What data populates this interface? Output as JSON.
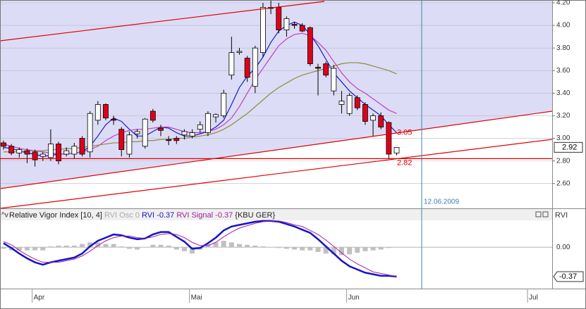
{
  "chart_data": [
    {
      "type": "candlestick",
      "symbol": "{KBU GER}",
      "up_color": "#ffffff",
      "down_color": "#e0001a",
      "open": [
        2.96,
        2.93,
        2.87,
        2.89,
        2.88,
        2.84,
        2.83,
        2.95,
        2.86,
        2.86,
        3.0,
        2.88,
        3.16,
        3.3,
        3.17,
        3.08,
        2.86,
        3.04,
        2.93,
        3.24,
        3.09,
        2.99,
        3.0,
        3.03,
        3.02,
        3.08,
        3.05,
        3.19,
        3.2,
        3.56,
        3.76,
        3.71,
        3.46,
        3.76,
        4.15,
        4.16,
        3.96,
        4.01,
        4.0,
        3.98,
        3.63,
        3.66,
        3.42,
        3.3,
        3.22,
        3.36,
        3.3,
        3.16,
        3.2,
        3.14,
        2.87,
        null,
        null,
        null,
        null,
        null,
        null,
        null,
        null,
        null,
        null,
        null,
        null,
        null,
        null,
        null,
        null,
        null,
        null,
        null
      ],
      "high": [
        2.98,
        2.95,
        2.92,
        2.91,
        2.9,
        2.88,
        3.08,
        2.97,
        2.92,
        2.96,
        3.02,
        3.24,
        3.33,
        3.31,
        3.2,
        3.1,
        3.06,
        3.08,
        3.18,
        3.26,
        3.12,
        3.02,
        3.02,
        3.08,
        3.08,
        3.15,
        3.24,
        3.22,
        3.43,
        3.9,
        3.8,
        3.73,
        3.82,
        4.2,
        4.22,
        4.2,
        4.08,
        4.03,
        4.02,
        3.99,
        3.66,
        3.68,
        3.65,
        3.42,
        3.4,
        3.38,
        3.32,
        3.22,
        3.23,
        3.15,
        2.92,
        null,
        null,
        null,
        null,
        null,
        null,
        null,
        null,
        null,
        null,
        null,
        null,
        null,
        null,
        null,
        null,
        null,
        null,
        null
      ],
      "low": [
        2.9,
        2.85,
        2.83,
        2.78,
        2.75,
        2.8,
        2.8,
        2.77,
        2.84,
        2.82,
        2.84,
        2.83,
        3.12,
        3.16,
        3.12,
        2.84,
        2.83,
        3.0,
        2.91,
        3.14,
        3.02,
        2.94,
        2.95,
        2.99,
        3.0,
        3.05,
        3.02,
        3.14,
        3.18,
        3.52,
        3.74,
        3.5,
        3.4,
        3.72,
        4.1,
        3.93,
        3.9,
        3.97,
        3.94,
        3.64,
        3.38,
        3.54,
        3.38,
        3.22,
        3.2,
        3.25,
        3.12,
        3.02,
        3.08,
        2.82,
        2.85,
        null,
        null,
        null,
        null,
        null,
        null,
        null,
        null,
        null,
        null,
        null,
        null,
        null,
        null,
        null,
        null,
        null,
        null,
        null
      ],
      "close": [
        2.93,
        2.87,
        2.9,
        2.86,
        2.81,
        2.86,
        2.95,
        2.8,
        2.89,
        2.93,
        2.86,
        3.22,
        3.3,
        3.18,
        3.16,
        2.9,
        3.03,
        3.06,
        3.17,
        3.16,
        3.07,
        2.98,
        2.98,
        3.06,
        3.05,
        3.12,
        3.22,
        3.21,
        3.4,
        3.76,
        3.77,
        3.54,
        3.8,
        4.16,
        4.16,
        3.96,
        4.06,
        4.0,
        3.95,
        3.66,
        3.62,
        3.56,
        3.62,
        3.33,
        3.38,
        3.27,
        3.15,
        3.2,
        3.1,
        2.86,
        2.92,
        null,
        null,
        null,
        null,
        null,
        null,
        null,
        null,
        null,
        null,
        null,
        null,
        null,
        null,
        null,
        null,
        null,
        null,
        null
      ],
      "moving_averages": [
        {
          "color": "#1a1ac8",
          "values": [
            2.92,
            2.91,
            2.89,
            2.87,
            2.86,
            2.84,
            2.85,
            2.86,
            2.86,
            2.87,
            2.88,
            2.93,
            3.02,
            3.12,
            3.18,
            3.15,
            3.08,
            3.02,
            3.02,
            3.06,
            3.1,
            3.09,
            3.05,
            3.02,
            3.02,
            3.04,
            3.06,
            3.1,
            3.16,
            3.3,
            3.45,
            3.55,
            3.62,
            3.72,
            3.85,
            3.95,
            4.0,
            4.03,
            4.0,
            3.92,
            3.82,
            3.7,
            3.58,
            3.5,
            3.42,
            3.36,
            3.3,
            3.25,
            3.2,
            3.12,
            3.05,
            null,
            null,
            null,
            null,
            null,
            null,
            null,
            null,
            null,
            null,
            null,
            null,
            null,
            null,
            null,
            null,
            null,
            null,
            null
          ]
        },
        {
          "color": "#c040c0",
          "values": [
            2.95,
            2.93,
            2.91,
            2.9,
            2.89,
            2.88,
            2.87,
            2.86,
            2.86,
            2.87,
            2.88,
            2.9,
            2.93,
            2.98,
            3.02,
            3.05,
            3.07,
            3.08,
            3.08,
            3.09,
            3.1,
            3.1,
            3.08,
            3.06,
            3.05,
            3.05,
            3.06,
            3.08,
            3.12,
            3.18,
            3.28,
            3.4,
            3.52,
            3.62,
            3.72,
            3.82,
            3.88,
            3.92,
            3.93,
            3.91,
            3.85,
            3.78,
            3.68,
            3.58,
            3.5,
            3.44,
            3.4,
            3.35,
            3.3,
            3.25,
            3.22,
            null,
            null,
            null,
            null,
            null,
            null,
            null,
            null,
            null,
            null,
            null,
            null,
            null,
            null,
            null,
            null,
            null,
            null,
            null
          ]
        },
        {
          "color": "#8c8c3c",
          "values": [
            2.88,
            2.88,
            2.88,
            2.89,
            2.89,
            2.89,
            2.9,
            2.9,
            2.91,
            2.91,
            2.92,
            2.93,
            2.94,
            2.95,
            2.96,
            2.96,
            2.97,
            2.97,
            2.98,
            2.98,
            2.99,
            2.99,
            3.0,
            3.0,
            3.01,
            3.02,
            3.03,
            3.05,
            3.08,
            3.12,
            3.17,
            3.22,
            3.28,
            3.34,
            3.4,
            3.45,
            3.49,
            3.53,
            3.56,
            3.58,
            3.6,
            3.62,
            3.64,
            3.66,
            3.67,
            3.67,
            3.66,
            3.64,
            3.62,
            3.6,
            3.57,
            null,
            null,
            null,
            null,
            null,
            null,
            null,
            null,
            null,
            null,
            null,
            null,
            null,
            null,
            null,
            null,
            null,
            null,
            null
          ]
        }
      ],
      "ylim": [
        2.38,
        4.225
      ],
      "yticks": [
        {
          "value": 2.6,
          "label": "2.60"
        },
        {
          "value": 2.8,
          "label": "2.80"
        },
        {
          "value": 3.0,
          "label": "3.00"
        },
        {
          "value": 3.2,
          "label": "3.20"
        },
        {
          "value": 3.4,
          "label": "3.40"
        },
        {
          "value": 3.6,
          "label": "3.60"
        },
        {
          "value": 3.8,
          "label": "3.80"
        },
        {
          "value": 4.0,
          "label": "4.00"
        },
        {
          "value": 4.2,
          "label": "4.20"
        }
      ],
      "line_label": {
        "value": 3.05,
        "label": "3.05"
      },
      "horizontal_line": {
        "value": 2.82,
        "label": "2.82"
      },
      "cursor_label": "12.06.2009"
    },
    {
      "type": "line",
      "title": "Relative Vigor Index [10, 4]",
      "axis_label": "RVI",
      "categories": [
        null,
        null,
        null,
        null,
        "Apr",
        null,
        null,
        null,
        null,
        null,
        null,
        null,
        null,
        null,
        null,
        null,
        null,
        null,
        null,
        null,
        null,
        null,
        null,
        null,
        "Mai",
        null,
        null,
        null,
        null,
        null,
        null,
        null,
        null,
        null,
        null,
        null,
        null,
        null,
        null,
        null,
        null,
        null,
        null,
        null,
        "Jun",
        null,
        null,
        null,
        null,
        null,
        null,
        null,
        null,
        null,
        null,
        null,
        null,
        null,
        null,
        null,
        null,
        null,
        null,
        null,
        null,
        null,
        null,
        "Jul",
        null,
        null
      ],
      "series": [
        {
          "name": "RVI Osc",
          "color": "#c0c0c0",
          "style": "bars",
          "values": [
            -0.02,
            -0.04,
            -0.04,
            -0.04,
            -0.04,
            -0.04,
            0.01,
            0.02,
            0.02,
            0.02,
            0.04,
            0.06,
            0.06,
            0.04,
            0.04,
            0.01,
            -0.02,
            -0.03,
            0,
            0.03,
            0.03,
            0.02,
            -0.03,
            -0.05,
            -0.08,
            -0.03,
            0.04,
            0.06,
            0.08,
            0.06,
            0.04,
            0.03,
            0.02,
            0.01,
            0,
            -0.01,
            -0.02,
            -0.03,
            -0.04,
            -0.04,
            -0.06,
            -0.08,
            -0.09,
            -0.1,
            -0.09,
            -0.07,
            -0.05,
            -0.04,
            -0.03,
            -0.01,
            0,
            null,
            null,
            null,
            null,
            null,
            null,
            null,
            null,
            null,
            null,
            null,
            null,
            null,
            null,
            null,
            null,
            null,
            null,
            null
          ]
        },
        {
          "name": "RVI",
          "color": "#1414c8",
          "style": "line",
          "width": 2.5,
          "values": [
            0.05,
            -0.01,
            -0.08,
            -0.14,
            -0.19,
            -0.22,
            -0.19,
            -0.17,
            -0.15,
            -0.13,
            -0.08,
            0.01,
            0.08,
            0.12,
            0.16,
            0.15,
            0.12,
            0.1,
            0.11,
            0.16,
            0.19,
            0.19,
            0.13,
            0.07,
            -0.02,
            -0.01,
            0.05,
            0.12,
            0.21,
            0.26,
            0.28,
            0.3,
            0.32,
            0.33,
            0.33,
            0.32,
            0.29,
            0.26,
            0.22,
            0.18,
            0.1,
            0.01,
            -0.08,
            -0.17,
            -0.24,
            -0.28,
            -0.32,
            -0.34,
            -0.36,
            -0.36,
            -0.37,
            null,
            null,
            null,
            null,
            null,
            null,
            null,
            null,
            null,
            null,
            null,
            null,
            null,
            null,
            null,
            null,
            null,
            null,
            null
          ]
        },
        {
          "name": "RVI Signal",
          "color": "#a020a0",
          "style": "line",
          "width": 1,
          "values": [
            0.07,
            0.03,
            -0.04,
            -0.1,
            -0.15,
            -0.19,
            -0.19,
            -0.19,
            -0.17,
            -0.15,
            -0.11,
            -0.05,
            0.02,
            0.08,
            0.12,
            0.14,
            0.14,
            0.12,
            0.11,
            0.13,
            0.16,
            0.17,
            0.16,
            0.12,
            0.06,
            0.02,
            0.02,
            0.06,
            0.13,
            0.19,
            0.24,
            0.27,
            0.3,
            0.32,
            0.33,
            0.33,
            0.31,
            0.28,
            0.26,
            0.21,
            0.16,
            0.09,
            0.01,
            -0.07,
            -0.15,
            -0.21,
            -0.26,
            -0.31,
            -0.33,
            -0.35,
            -0.37,
            null,
            null,
            null,
            null,
            null,
            null,
            null,
            null,
            null,
            null,
            null,
            null,
            null,
            null,
            null,
            null,
            null,
            null,
            null
          ]
        }
      ],
      "ylim": [
        -0.52,
        0.47
      ],
      "yticks": [
        {
          "value": 0,
          "label": "0.00"
        }
      ]
    }
  ]
}
